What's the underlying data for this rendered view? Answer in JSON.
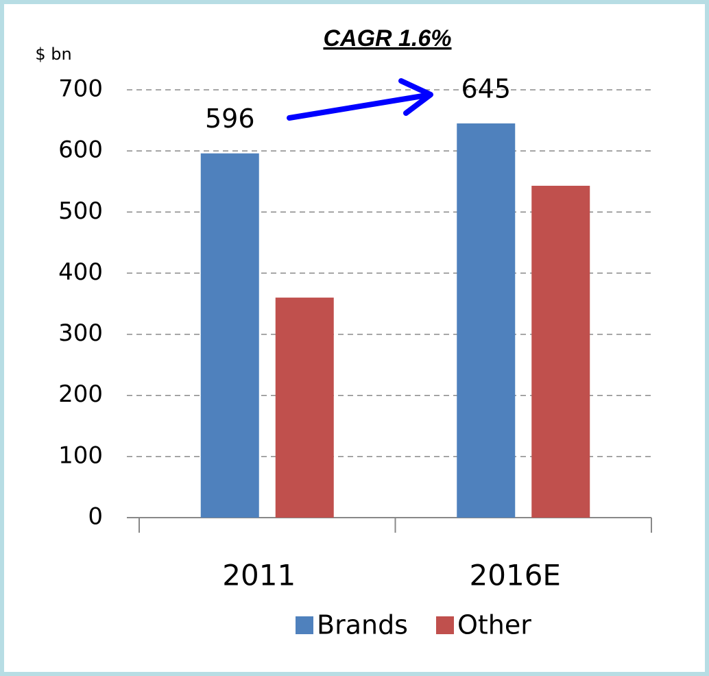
{
  "chart_data": {
    "type": "bar",
    "title": "CAGR 1.6%",
    "y_label": "$ bn",
    "categories": [
      "2011",
      "2016E"
    ],
    "series": [
      {
        "name": "Brands",
        "color": "#4f81bd",
        "values": [
          596,
          645
        ],
        "data_labels": true
      },
      {
        "name": "Other",
        "color": "#c0504d",
        "values": [
          360,
          543
        ],
        "data_labels": false
      }
    ],
    "ylim": [
      0,
      700
    ],
    "yticks": [
      0,
      100,
      200,
      300,
      400,
      500,
      600,
      700
    ],
    "grid": true,
    "legend": "bottom"
  }
}
